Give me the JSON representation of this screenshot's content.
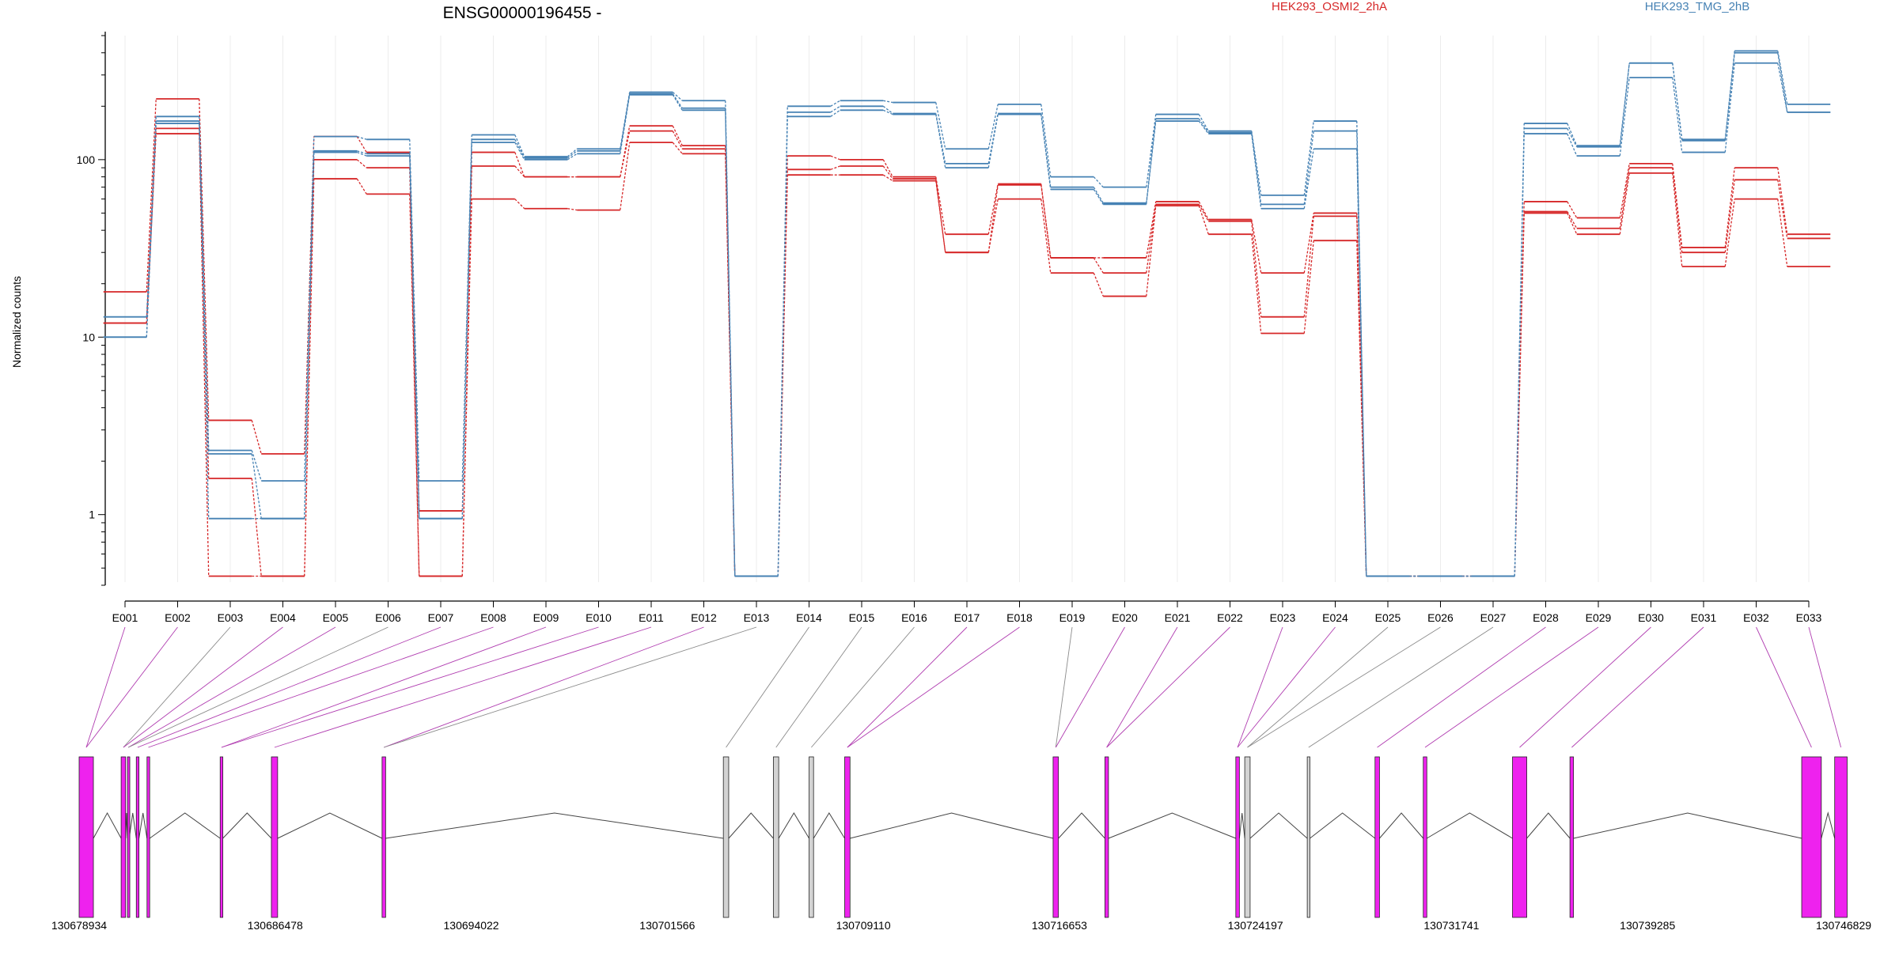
{
  "chart_data": {
    "type": "line",
    "title": "ENSG00000196455 -",
    "ylabel": "Normalized counts",
    "yscale": "log",
    "ylim": [
      0.4,
      500
    ],
    "yticks": [
      1,
      10,
      100
    ],
    "ytick_labels": [
      "1",
      "10",
      "100"
    ],
    "grid": true,
    "legend_position": "top-right",
    "categories": [
      "E001",
      "E002",
      "E003",
      "E004",
      "E005",
      "E006",
      "E007",
      "E008",
      "E009",
      "E010",
      "E011",
      "E012",
      "E013",
      "E014",
      "E015",
      "E016",
      "E017",
      "E018",
      "E019",
      "E020",
      "E021",
      "E022",
      "E023",
      "E024",
      "E025",
      "E026",
      "E027",
      "E028",
      "E029",
      "E030",
      "E031",
      "E032",
      "E033"
    ],
    "series": [
      {
        "name": "HEK293_OSMI2_2hA",
        "group": "osmi",
        "color": "#D62728",
        "values": [
          18,
          220,
          3.4,
          2.2,
          135,
          110,
          1.05,
          110,
          80,
          80,
          155,
          120,
          0.45,
          105,
          100,
          80,
          38,
          73,
          28,
          28,
          58,
          46,
          23,
          50,
          0.45,
          0.45,
          0.45,
          58,
          47,
          95,
          32,
          90,
          38
        ]
      },
      {
        "name": "",
        "group": "osmi",
        "color": "#D62728",
        "values": [
          12,
          150,
          1.6,
          0.45,
          100,
          90,
          0.45,
          92,
          80,
          80,
          145,
          115,
          0.45,
          88,
          92,
          78,
          30,
          72,
          28,
          23,
          56,
          45,
          13,
          48,
          0.45,
          0.45,
          0.45,
          51,
          41,
          90,
          30,
          77,
          36
        ]
      },
      {
        "name": "",
        "group": "osmi",
        "color": "#D62728",
        "values": [
          12,
          140,
          0.45,
          0.45,
          78,
          64,
          0.45,
          60,
          53,
          52,
          125,
          108,
          0.45,
          82,
          82,
          76,
          30,
          60,
          23,
          17,
          55,
          38,
          10.5,
          35,
          0.45,
          0.45,
          0.45,
          50,
          38,
          84,
          25,
          60,
          25
        ]
      },
      {
        "name": "HEK293_TMG_2hB",
        "group": "tmg",
        "color": "#4682B4",
        "values": [
          13,
          175,
          2.3,
          1.55,
          135,
          130,
          1.55,
          138,
          104,
          115,
          240,
          215,
          0.45,
          200,
          215,
          210,
          115,
          205,
          80,
          70,
          180,
          145,
          63,
          165,
          0.45,
          0.45,
          0.45,
          160,
          120,
          350,
          130,
          410,
          205
        ]
      },
      {
        "name": "",
        "group": "tmg",
        "color": "#4682B4",
        "values": [
          10,
          165,
          2.2,
          0.95,
          112,
          108,
          0.95,
          130,
          102,
          112,
          235,
          195,
          0.45,
          185,
          200,
          182,
          95,
          182,
          70,
          57,
          170,
          142,
          56,
          145,
          0.45,
          0.45,
          0.45,
          150,
          118,
          350,
          128,
          400,
          185
        ]
      },
      {
        "name": "",
        "group": "tmg",
        "color": "#4682B4",
        "values": [
          10,
          160,
          0.95,
          0.95,
          110,
          105,
          0.95,
          125,
          100,
          108,
          232,
          190,
          0.45,
          175,
          190,
          180,
          90,
          180,
          68,
          56,
          165,
          140,
          53,
          115,
          0.45,
          0.45,
          0.45,
          140,
          105,
          290,
          110,
          350,
          185
        ]
      }
    ],
    "gene_model": {
      "coordinate_labels": [
        "130678934",
        "130686478",
        "130694022",
        "130701566",
        "130709110",
        "130716653",
        "130724197",
        "130731741",
        "130739285",
        "130746829"
      ],
      "highlight_color": "#EE22EE",
      "other_color": "#D3D3D3",
      "exons": [
        {
          "start": 130678934,
          "end": 130679483,
          "highlight": true
        },
        {
          "start": 130680551,
          "end": 130680723,
          "highlight": true
        },
        {
          "start": 130680792,
          "end": 130680860,
          "highlight": true
        },
        {
          "start": 130681134,
          "end": 130681237,
          "highlight": true
        },
        {
          "start": 130681546,
          "end": 130681649,
          "highlight": true
        },
        {
          "start": 130684361,
          "end": 130684464,
          "highlight": true
        },
        {
          "start": 130686332,
          "end": 130686572,
          "highlight": true
        },
        {
          "start": 130690591,
          "end": 130690728,
          "highlight": true
        },
        {
          "start": 130703723,
          "end": 130703929,
          "highlight": false
        },
        {
          "start": 130705647,
          "end": 130705853,
          "highlight": false
        },
        {
          "start": 130707022,
          "end": 130707194,
          "highlight": false
        },
        {
          "start": 130708391,
          "end": 130708597,
          "highlight": true
        },
        {
          "start": 130716411,
          "end": 130716617,
          "highlight": true
        },
        {
          "start": 130718404,
          "end": 130718542,
          "highlight": true
        },
        {
          "start": 130723441,
          "end": 130723579,
          "highlight": true
        },
        {
          "start": 130723785,
          "end": 130723992,
          "highlight": false
        },
        {
          "start": 130726190,
          "end": 130726293,
          "highlight": false
        },
        {
          "start": 130728798,
          "end": 130728970,
          "highlight": true
        },
        {
          "start": 130730655,
          "end": 130730792,
          "highlight": true
        },
        {
          "start": 130734088,
          "end": 130734637,
          "highlight": true
        },
        {
          "start": 130736299,
          "end": 130736436,
          "highlight": true
        },
        {
          "start": 130745216,
          "end": 130745971,
          "highlight": true
        },
        {
          "start": 130746485,
          "end": 130746966,
          "highlight": true
        }
      ],
      "bin_links": [
        {
          "bin": "E001",
          "exon": 0,
          "highlight": true
        },
        {
          "bin": "E002",
          "exon": 0,
          "highlight": true
        },
        {
          "bin": "E003",
          "exon": 1,
          "highlight": false
        },
        {
          "bin": "E004",
          "exon": 1,
          "highlight": true
        },
        {
          "bin": "E005",
          "exon": 2,
          "highlight": true
        },
        {
          "bin": "E006",
          "exon": 2,
          "highlight": false
        },
        {
          "bin": "E007",
          "exon": 3,
          "highlight": true
        },
        {
          "bin": "E008",
          "exon": 4,
          "highlight": true
        },
        {
          "bin": "E009",
          "exon": 5,
          "highlight": true
        },
        {
          "bin": "E010",
          "exon": 5,
          "highlight": true
        },
        {
          "bin": "E011",
          "exon": 6,
          "highlight": true
        },
        {
          "bin": "E012",
          "exon": 7,
          "highlight": true
        },
        {
          "bin": "E013",
          "exon": 7,
          "highlight": false
        },
        {
          "bin": "E014",
          "exon": 8,
          "highlight": false
        },
        {
          "bin": "E015",
          "exon": 9,
          "highlight": false
        },
        {
          "bin": "E016",
          "exon": 10,
          "highlight": false
        },
        {
          "bin": "E017",
          "exon": 11,
          "highlight": true
        },
        {
          "bin": "E018",
          "exon": 11,
          "highlight": true
        },
        {
          "bin": "E019",
          "exon": 12,
          "highlight": false
        },
        {
          "bin": "E020",
          "exon": 12,
          "highlight": true
        },
        {
          "bin": "E021",
          "exon": 13,
          "highlight": true
        },
        {
          "bin": "E022",
          "exon": 13,
          "highlight": true
        },
        {
          "bin": "E023",
          "exon": 14,
          "highlight": true
        },
        {
          "bin": "E024",
          "exon": 14,
          "highlight": true
        },
        {
          "bin": "E025",
          "exon": 15,
          "highlight": false
        },
        {
          "bin": "E026",
          "exon": 15,
          "highlight": false
        },
        {
          "bin": "E027",
          "exon": 16,
          "highlight": false
        },
        {
          "bin": "E028",
          "exon": 17,
          "highlight": true
        },
        {
          "bin": "E029",
          "exon": 18,
          "highlight": true
        },
        {
          "bin": "E030",
          "exon": 19,
          "highlight": true
        },
        {
          "bin": "E031",
          "exon": 20,
          "highlight": true
        },
        {
          "bin": "E032",
          "exon": 21,
          "highlight": true
        },
        {
          "bin": "E033",
          "exon": 22,
          "highlight": true
        }
      ]
    }
  }
}
